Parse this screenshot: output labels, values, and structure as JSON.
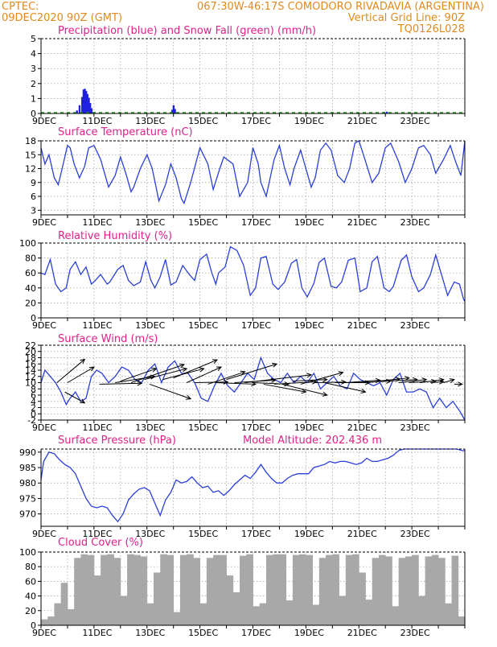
{
  "header": {
    "line1_left": "CPTEC:",
    "line1_right": "067:30W-46:17S  COMODORO RIVADAVIA (ARGENTINA)",
    "line2_left": "09DEC2020 90Z (GMT)",
    "line2_right": "Vertical Grid Line: 90Z",
    "line3_right": "TQ0126L028"
  },
  "colors": {
    "line": "#2b3fd9",
    "bar": "#2020e0",
    "snow": "#1a9a1a",
    "cloud": "#a8a8a8",
    "title": "#e0208a",
    "header": "#e08a1e"
  },
  "x_axis": {
    "date_labels": [
      "9DEC",
      "11DEC",
      "13DEC",
      "15DEC",
      "17DEC",
      "19DEC",
      "21DEC",
      "23DEC"
    ],
    "day_ticks": 16
  },
  "chart_data": [
    {
      "type": "bar",
      "title": "Precipitation (blue) and Snow Fall (green) (mm/h)",
      "ylim": [
        0,
        5
      ],
      "yticks": [
        0,
        1,
        2,
        3,
        4,
        5
      ],
      "series": [
        {
          "name": "Precipitation",
          "color": "#2020e0",
          "points": [
            [
              1.35,
              0.2
            ],
            [
              1.45,
              0.55
            ],
            [
              1.55,
              1.1
            ],
            [
              1.6,
              1.6
            ],
            [
              1.65,
              1.65
            ],
            [
              1.7,
              1.5
            ],
            [
              1.75,
              1.3
            ],
            [
              1.8,
              1.05
            ],
            [
              1.85,
              0.7
            ],
            [
              1.9,
              0.35
            ],
            [
              2.0,
              0.1
            ],
            [
              2.5,
              0.05
            ],
            [
              4.95,
              0.25
            ],
            [
              5.0,
              0.55
            ],
            [
              5.05,
              0.3
            ],
            [
              9.0,
              0.05
            ],
            [
              12.95,
              0.1
            ],
            [
              13.05,
              0.12
            ]
          ]
        }
      ],
      "snow": {
        "name": "Snow Fall",
        "value": 0
      }
    },
    {
      "type": "line",
      "title": "Surface Temperature (nC)",
      "ylim": [
        2,
        18
      ],
      "yticks": [
        3,
        6,
        9,
        12,
        15,
        18
      ],
      "x": [
        0,
        0.15,
        0.3,
        0.5,
        0.65,
        0.8,
        1.0,
        1.1,
        1.25,
        1.45,
        1.65,
        1.8,
        2.0,
        2.25,
        2.55,
        2.8,
        3.0,
        3.2,
        3.4,
        3.5,
        3.75,
        4.0,
        4.2,
        4.45,
        4.7,
        4.9,
        5.1,
        5.3,
        5.4,
        5.65,
        6.0,
        6.3,
        6.5,
        6.75,
        6.9,
        7.25,
        7.5,
        7.8,
        8.0,
        8.2,
        8.3,
        8.5,
        8.8,
        9.0,
        9.2,
        9.4,
        9.55,
        9.8,
        10.2,
        10.35,
        10.55,
        10.75,
        10.95,
        11.2,
        11.45,
        11.65,
        11.85,
        12.0,
        12.2,
        12.5,
        12.75,
        13.0,
        13.2,
        13.5,
        13.75,
        14.0,
        14.25,
        14.45,
        14.7,
        14.9,
        15.2,
        15.45,
        15.65,
        15.85,
        16.0
      ],
      "y": [
        16.5,
        13,
        15,
        10,
        8.5,
        12,
        17,
        16.5,
        13,
        10,
        12.5,
        16.5,
        17,
        14,
        8,
        10.5,
        14.5,
        11,
        7,
        8,
        12,
        15,
        12,
        5,
        8.5,
        13,
        10,
        5.5,
        4.5,
        9,
        16.5,
        13,
        7.5,
        12,
        14.5,
        13,
        6,
        9,
        16.5,
        13,
        9,
        6,
        14,
        17,
        12,
        8.5,
        12,
        16,
        8,
        10,
        16,
        17.5,
        16,
        10.5,
        9,
        12,
        17.5,
        18,
        14.5,
        9,
        11,
        16.5,
        17.5,
        13.5,
        9,
        12,
        16.5,
        17,
        15,
        11,
        14,
        17,
        13.5,
        10.5,
        18
      ]
    },
    {
      "type": "line",
      "title": "Relative Humidity (%)",
      "ylim": [
        0,
        100
      ],
      "yticks": [
        0,
        20,
        40,
        60,
        80,
        100
      ],
      "x": [
        0,
        0.15,
        0.35,
        0.55,
        0.75,
        0.95,
        1.1,
        1.3,
        1.5,
        1.7,
        1.9,
        2.05,
        2.25,
        2.5,
        2.6,
        2.9,
        3.1,
        3.3,
        3.5,
        3.75,
        3.95,
        4.15,
        4.3,
        4.5,
        4.7,
        4.9,
        5.1,
        5.35,
        5.6,
        5.8,
        6.0,
        6.25,
        6.45,
        6.6,
        6.7,
        6.95,
        7.15,
        7.4,
        7.65,
        7.9,
        8.1,
        8.3,
        8.5,
        8.75,
        8.95,
        9.2,
        9.45,
        9.65,
        9.85,
        10.05,
        10.3,
        10.5,
        10.7,
        10.95,
        11.15,
        11.35,
        11.6,
        11.85,
        12.05,
        12.3,
        12.5,
        12.7,
        12.95,
        13.15,
        13.3,
        13.6,
        13.8,
        14.0,
        14.25,
        14.45,
        14.7,
        14.9,
        15.1,
        15.35,
        15.6,
        15.8,
        15.95,
        16.0
      ],
      "y": [
        60,
        58,
        78,
        45,
        35,
        40,
        65,
        75,
        58,
        68,
        45,
        50,
        58,
        45,
        48,
        65,
        70,
        50,
        43,
        48,
        75,
        50,
        40,
        55,
        78,
        44,
        48,
        70,
        58,
        50,
        78,
        85,
        60,
        45,
        60,
        68,
        95,
        90,
        70,
        30,
        40,
        80,
        82,
        45,
        38,
        48,
        73,
        78,
        40,
        28,
        46,
        74,
        80,
        42,
        40,
        48,
        77,
        80,
        35,
        40,
        75,
        82,
        40,
        35,
        42,
        77,
        84,
        55,
        35,
        40,
        58,
        84,
        60,
        30,
        48,
        45,
        25,
        22
      ]
    },
    {
      "type": "line",
      "title": "Surface Wind (m/s)",
      "ylim": [
        -2,
        22
      ],
      "yticks": [
        -2,
        0,
        2,
        4,
        6,
        8,
        10,
        12,
        14,
        16,
        18,
        20,
        22
      ],
      "x": [
        0,
        0.15,
        0.35,
        0.55,
        0.75,
        0.95,
        1.1,
        1.3,
        1.5,
        1.7,
        1.9,
        2.1,
        2.3,
        2.55,
        2.8,
        3.05,
        3.3,
        3.55,
        3.8,
        4.05,
        4.3,
        4.55,
        4.8,
        5.05,
        5.3,
        5.55,
        5.8,
        6.05,
        6.3,
        6.55,
        6.8,
        7.05,
        7.3,
        7.55,
        7.8,
        8.05,
        8.3,
        8.55,
        8.8,
        9.05,
        9.3,
        9.55,
        9.8,
        10.05,
        10.3,
        10.55,
        10.8,
        11.05,
        11.3,
        11.55,
        11.8,
        12.05,
        12.3,
        12.55,
        12.8,
        13.05,
        13.3,
        13.55,
        13.8,
        14.05,
        14.3,
        14.55,
        14.8,
        15.05,
        15.3,
        15.55,
        15.8,
        16.0
      ],
      "y": [
        10,
        14,
        12,
        10,
        7,
        3,
        5,
        7,
        4,
        5,
        12,
        14,
        13,
        10,
        12,
        15,
        14,
        11,
        10,
        14,
        16,
        10,
        15,
        17,
        13,
        13,
        10,
        5,
        4,
        9,
        13,
        9,
        7,
        10,
        13,
        11,
        18,
        13,
        11,
        10,
        13,
        10,
        12,
        10,
        13,
        8,
        10,
        12,
        9,
        8,
        13,
        11,
        10,
        9,
        10,
        6,
        11,
        13,
        7,
        7,
        8,
        7,
        2,
        5,
        2,
        4,
        1,
        -2
      ],
      "vectors": [
        {
          "x": 0.6,
          "y": 10,
          "dx": 1.05,
          "dy": 7.5
        },
        {
          "x": 1.0,
          "y": 10,
          "dx": 1.0,
          "dy": 5.0
        },
        {
          "x": 0.9,
          "y": 7,
          "dx": 0.75,
          "dy": -3.5
        },
        {
          "x": 2.2,
          "y": 9.5,
          "dx": 1.6,
          "dy": 0.3
        },
        {
          "x": 2.8,
          "y": 10,
          "dx": 1.5,
          "dy": 2.0
        },
        {
          "x": 3.0,
          "y": 10.5,
          "dx": 1.35,
          "dy": 4.0
        },
        {
          "x": 3.4,
          "y": 10,
          "dx": 2.0,
          "dy": 5.8
        },
        {
          "x": 3.9,
          "y": 11,
          "dx": 1.6,
          "dy": 3.5
        },
        {
          "x": 4.1,
          "y": 9.5,
          "dx": 1.55,
          "dy": -4.7
        },
        {
          "x": 4.6,
          "y": 11,
          "dx": 1.55,
          "dy": 3.5
        },
        {
          "x": 5.0,
          "y": 11.5,
          "dx": 1.65,
          "dy": 5.8
        },
        {
          "x": 5.5,
          "y": 10,
          "dx": 1.3,
          "dy": 5.0
        },
        {
          "x": 5.8,
          "y": 10,
          "dx": 1.25,
          "dy": 0.2
        },
        {
          "x": 6.3,
          "y": 9.5,
          "dx": 1.4,
          "dy": 4.0
        },
        {
          "x": 6.6,
          "y": 10,
          "dx": 1.5,
          "dy": -0.5
        },
        {
          "x": 7.0,
          "y": 11,
          "dx": 1.9,
          "dy": 5.0
        },
        {
          "x": 7.3,
          "y": 10,
          "dx": 1.55,
          "dy": 0.8
        },
        {
          "x": 7.7,
          "y": 10,
          "dx": 2.5,
          "dy": 2.5
        },
        {
          "x": 8.0,
          "y": 10,
          "dx": 1.35,
          "dy": -0.5
        },
        {
          "x": 8.4,
          "y": 9.5,
          "dx": 1.6,
          "dy": -2.5
        },
        {
          "x": 8.8,
          "y": 9.5,
          "dx": 1.6,
          "dy": 0.8
        },
        {
          "x": 9.1,
          "y": 9.5,
          "dx": 1.7,
          "dy": -3.5
        },
        {
          "x": 9.5,
          "y": 10.5,
          "dx": 1.3,
          "dy": 0.5
        },
        {
          "x": 9.8,
          "y": 9.5,
          "dx": 1.6,
          "dy": 3.8
        },
        {
          "x": 10.3,
          "y": 10,
          "dx": 1.2,
          "dy": 0.2
        },
        {
          "x": 10.7,
          "y": 10,
          "dx": 1.55,
          "dy": -3.0
        },
        {
          "x": 11.1,
          "y": 10,
          "dx": 1.3,
          "dy": 0.0
        },
        {
          "x": 11.5,
          "y": 10,
          "dx": 1.3,
          "dy": 0.8
        },
        {
          "x": 11.9,
          "y": 10,
          "dx": 1.3,
          "dy": 0.5
        },
        {
          "x": 12.3,
          "y": 10,
          "dx": 1.25,
          "dy": 1.2
        },
        {
          "x": 12.7,
          "y": 10.5,
          "dx": 1.2,
          "dy": 1.0
        },
        {
          "x": 13.1,
          "y": 10.5,
          "dx": 1.1,
          "dy": 0.5
        },
        {
          "x": 13.5,
          "y": 10,
          "dx": 1.05,
          "dy": 1.0
        },
        {
          "x": 13.9,
          "y": 10,
          "dx": 1.0,
          "dy": 0.5
        },
        {
          "x": 14.3,
          "y": 10,
          "dx": 0.9,
          "dy": 1.0
        },
        {
          "x": 14.7,
          "y": 10,
          "dx": 0.5,
          "dy": 0.3
        },
        {
          "x": 15.2,
          "y": 10,
          "dx": 0.4,
          "dy": 1.0
        },
        {
          "x": 15.6,
          "y": 9.5,
          "dx": 0.3,
          "dy": 0.0
        }
      ]
    },
    {
      "type": "line",
      "title": "Surface Pressure (hPa)",
      "annotation": "Model Altitude: 202.436 m",
      "ylim": [
        966,
        991
      ],
      "yticks": [
        970,
        975,
        980,
        985,
        990
      ],
      "x": [
        0,
        0.1,
        0.3,
        0.5,
        0.7,
        0.9,
        1.1,
        1.3,
        1.5,
        1.7,
        1.9,
        2.1,
        2.3,
        2.5,
        2.7,
        2.9,
        3.1,
        3.3,
        3.5,
        3.7,
        3.9,
        4.1,
        4.3,
        4.5,
        4.7,
        4.9,
        5.1,
        5.3,
        5.5,
        5.7,
        5.9,
        6.1,
        6.3,
        6.5,
        6.7,
        6.9,
        7.1,
        7.3,
        7.5,
        7.7,
        7.9,
        8.1,
        8.3,
        8.5,
        8.7,
        8.9,
        9.1,
        9.3,
        9.5,
        9.7,
        9.9,
        10.1,
        10.3,
        10.5,
        10.7,
        10.9,
        11.1,
        11.3,
        11.5,
        11.7,
        11.9,
        12.1,
        12.3,
        12.5,
        12.7,
        12.9,
        13.1,
        13.3,
        13.5,
        13.7,
        13.9,
        14.1,
        14.3,
        14.5,
        14.7,
        14.9,
        15.1,
        15.3,
        15.5,
        15.7,
        15.9,
        16.0
      ],
      "y": [
        981,
        987,
        990,
        989.5,
        987.5,
        986,
        985,
        983,
        979,
        975,
        972.5,
        972,
        972.5,
        972,
        969.5,
        967.5,
        970,
        974.5,
        976.5,
        978,
        978.5,
        977.5,
        973.5,
        969.5,
        974.5,
        977,
        981,
        980,
        980.5,
        982,
        980,
        978.5,
        979,
        977,
        977.5,
        976,
        977.5,
        979.5,
        981,
        982.5,
        981.5,
        983.5,
        986,
        983.5,
        981.5,
        980,
        980,
        981.5,
        982.5,
        983,
        983,
        983,
        985,
        985.5,
        986,
        987,
        986.5,
        987,
        987,
        986.5,
        986,
        986.5,
        988,
        987,
        987,
        987.5,
        988,
        989,
        990.5,
        991,
        991,
        991.5,
        991,
        992,
        991.5,
        992,
        991.5,
        991,
        991.5,
        991,
        990.5,
        990.5
      ]
    },
    {
      "type": "bar",
      "title": "Cloud Cover (%)",
      "ylim": [
        0,
        100
      ],
      "yticks": [
        0,
        20,
        40,
        60,
        80,
        100
      ],
      "x": [
        0,
        0.25,
        0.5,
        0.75,
        1.0,
        1.25,
        1.5,
        1.75,
        2.0,
        2.25,
        2.5,
        2.75,
        3.0,
        3.25,
        3.5,
        3.75,
        4.0,
        4.25,
        4.5,
        4.75,
        5.0,
        5.25,
        5.5,
        5.75,
        6.0,
        6.25,
        6.5,
        6.75,
        7.0,
        7.25,
        7.5,
        7.75,
        8.0,
        8.25,
        8.5,
        8.75,
        9.0,
        9.25,
        9.5,
        9.75,
        10.0,
        10.25,
        10.5,
        10.75,
        11.0,
        11.25,
        11.5,
        11.75,
        12.0,
        12.25,
        12.5,
        12.75,
        13.0,
        13.25,
        13.5,
        13.75,
        14.0,
        14.25,
        14.5,
        14.75,
        15.0,
        15.25,
        15.5,
        15.75
      ],
      "values": [
        8,
        12,
        30,
        58,
        22,
        92,
        97,
        96,
        68,
        96,
        97,
        92,
        40,
        97,
        96,
        94,
        30,
        72,
        97,
        96,
        18,
        96,
        97,
        92,
        30,
        92,
        96,
        96,
        68,
        45,
        95,
        97,
        26,
        30,
        96,
        97,
        97,
        34,
        96,
        97,
        96,
        28,
        92,
        96,
        97,
        40,
        96,
        97,
        72,
        35,
        92,
        96,
        94,
        26,
        92,
        94,
        96,
        40,
        94,
        96,
        92,
        30,
        95,
        12
      ]
    }
  ]
}
